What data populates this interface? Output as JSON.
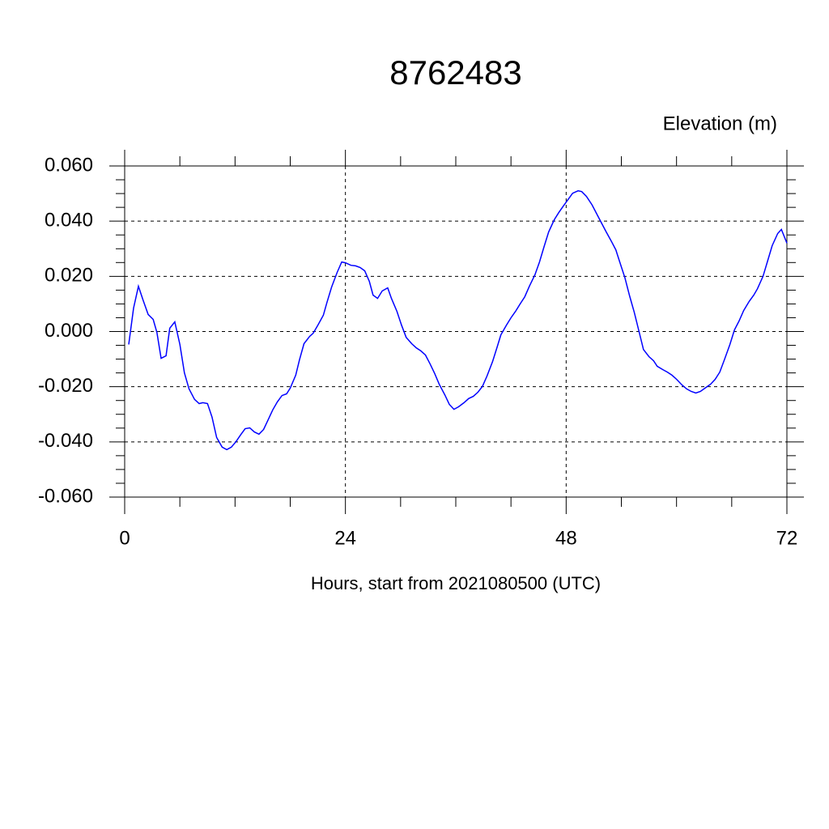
{
  "chart_data": {
    "type": "line",
    "title": "8762483",
    "y_label": "Elevation (m)",
    "x_label": "Hours, start from 2021080500 (UTC)",
    "x": [
      0.44,
      0.97,
      1.5,
      2.0,
      2.55,
      3.1,
      3.5,
      3.96,
      4.5,
      4.9,
      5.45,
      6.0,
      6.5,
      7.0,
      7.6,
      8.1,
      8.5,
      9.0,
      9.5,
      10.0,
      10.6,
      11.1,
      11.6,
      12.1,
      12.6,
      13.1,
      13.6,
      14.1,
      14.6,
      15.1,
      15.6,
      16.1,
      16.6,
      17.1,
      17.6,
      18.0,
      18.6,
      19.0,
      19.5,
      20.1,
      20.5,
      21.0,
      21.6,
      22.0,
      22.5,
      23.1,
      23.6,
      24.0,
      24.6,
      25.1,
      25.6,
      26.1,
      26.6,
      27.0,
      27.5,
      28.0,
      28.6,
      29.0,
      29.6,
      30.1,
      30.6,
      31.2,
      31.7,
      32.2,
      32.7,
      33.2,
      33.7,
      34.2,
      34.8,
      35.3,
      35.8,
      36.3,
      36.9,
      37.4,
      37.9,
      38.4,
      38.9,
      39.4,
      40.0,
      40.5,
      40.9,
      41.5,
      42.0,
      42.5,
      43.0,
      43.5,
      44.0,
      44.6,
      45.1,
      45.6,
      46.1,
      46.7,
      47.2,
      47.7,
      48.2,
      48.7,
      49.3,
      49.7,
      50.2,
      50.8,
      51.3,
      51.8,
      52.3,
      52.9,
      53.4,
      53.8,
      54.4,
      54.9,
      55.4,
      55.9,
      56.4,
      57.0,
      57.5,
      57.9,
      58.5,
      59.0,
      59.5,
      60.0,
      60.6,
      61.1,
      61.6,
      62.1,
      62.6,
      63.1,
      63.7,
      64.2,
      64.7,
      65.2,
      65.8,
      66.3,
      66.8,
      67.3,
      67.9,
      68.4,
      68.8,
      69.4,
      69.9,
      70.4,
      71.0,
      71.4,
      72.0
    ],
    "series": [
      {
        "name": "Elevation",
        "color": "#0000ff",
        "values": [
          -0.0047,
          0.0085,
          0.0164,
          0.0114,
          0.0062,
          0.0044,
          -0.0003,
          -0.0097,
          -0.0088,
          0.0012,
          0.0035,
          -0.0047,
          -0.015,
          -0.0208,
          -0.0246,
          -0.0261,
          -0.0258,
          -0.0261,
          -0.031,
          -0.0384,
          -0.0419,
          -0.0428,
          -0.0419,
          -0.0399,
          -0.0375,
          -0.0352,
          -0.0349,
          -0.0364,
          -0.0372,
          -0.0355,
          -0.032,
          -0.0284,
          -0.0255,
          -0.0232,
          -0.0226,
          -0.0205,
          -0.0158,
          -0.0103,
          -0.0044,
          -0.0018,
          -0.0006,
          0.0023,
          0.0059,
          0.0106,
          0.0161,
          0.0214,
          0.0252,
          0.0249,
          0.024,
          0.0238,
          0.0232,
          0.022,
          0.0182,
          0.0132,
          0.012,
          0.0147,
          0.0158,
          0.012,
          0.0073,
          0.0023,
          -0.0021,
          -0.0044,
          -0.0059,
          -0.007,
          -0.0085,
          -0.0117,
          -0.0152,
          -0.0191,
          -0.0229,
          -0.0264,
          -0.0282,
          -0.0273,
          -0.0258,
          -0.0243,
          -0.0235,
          -0.022,
          -0.0199,
          -0.0161,
          -0.0109,
          -0.0056,
          -0.0012,
          0.0023,
          0.005,
          0.0073,
          0.01,
          0.0126,
          0.0164,
          0.0205,
          0.0252,
          0.0308,
          0.0361,
          0.0405,
          0.0431,
          0.0455,
          0.0478,
          0.0501,
          0.051,
          0.0507,
          0.049,
          0.046,
          0.0428,
          0.0396,
          0.0364,
          0.0328,
          0.0296,
          0.0255,
          0.0194,
          0.0129,
          0.007,
          0.0003,
          -0.0065,
          -0.0091,
          -0.0106,
          -0.0126,
          -0.0138,
          -0.0147,
          -0.0158,
          -0.0173,
          -0.0194,
          -0.0208,
          -0.0217,
          -0.0223,
          -0.0217,
          -0.0205,
          -0.0191,
          -0.0173,
          -0.0147,
          -0.0103,
          -0.0047,
          0.0006,
          0.0038,
          0.0076,
          0.0109,
          0.0132,
          0.0155,
          0.02,
          0.0255,
          0.0311,
          0.0355,
          0.037,
          0.032
        ]
      }
    ],
    "xlim": [
      0,
      72
    ],
    "xticks": [
      0,
      24,
      48,
      72
    ],
    "xminorticks": [
      6,
      12,
      18,
      30,
      36,
      42,
      54,
      60,
      66
    ],
    "ylim": [
      -0.06,
      0.06
    ],
    "yticks": [
      {
        "value": -0.06,
        "label": "-0.060"
      },
      {
        "value": -0.04,
        "label": "-0.040"
      },
      {
        "value": -0.02,
        "label": "-0.020"
      },
      {
        "value": 0,
        "label": "0.000"
      },
      {
        "value": 0.02,
        "label": "0.020"
      },
      {
        "value": 0.04,
        "label": "0.040"
      },
      {
        "value": 0.06,
        "label": "0.060"
      }
    ],
    "yminorticks": [
      -0.055,
      -0.05,
      -0.045,
      -0.035,
      -0.03,
      -0.025,
      -0.015,
      -0.01,
      -0.005,
      0.005,
      0.01,
      0.015,
      0.025,
      0.03,
      0.035,
      0.045,
      0.05,
      0.055
    ],
    "grid": true
  }
}
